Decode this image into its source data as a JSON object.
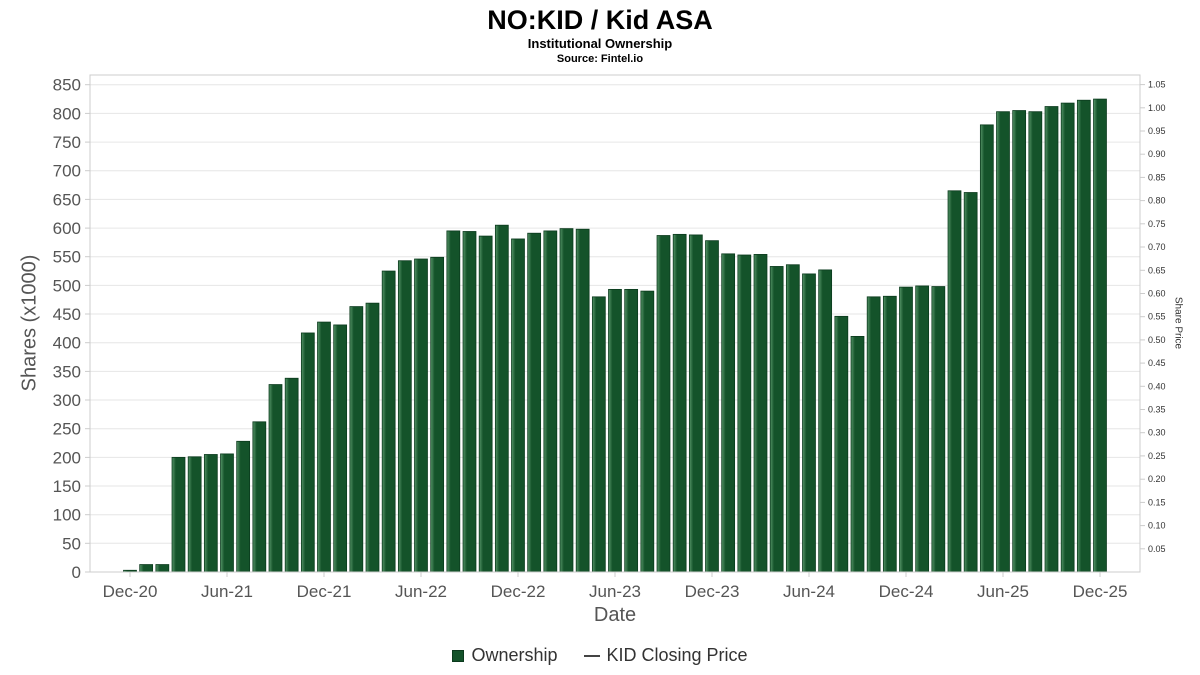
{
  "title": "NO:KID / Kid ASA",
  "subtitle": "Institutional Ownership",
  "source": "Source: Fintel.io",
  "xlabel": "Date",
  "ylabel_left": "Shares (x1000)",
  "ylabel_right": "Share Price",
  "legend": {
    "items": [
      {
        "label": "Ownership",
        "type": "bar",
        "color": "#14532a"
      },
      {
        "label": "KID Closing Price",
        "type": "line",
        "color": "#444444"
      }
    ]
  },
  "colors": {
    "bar_fill": "#14532a",
    "bar_edge_light": "#559467",
    "bar_stroke": "#0b3a1d",
    "grid": "#e6e6e6",
    "plot_border": "#cccccc",
    "tick_mark": "#cccccc",
    "tick_text": "#555555",
    "right_tick_text": "#333333"
  },
  "chart_data": {
    "type": "bar",
    "title": "NO:KID / Kid ASA",
    "subtitle": "Institutional Ownership",
    "source": "Source: Fintel.io",
    "xlabel": "Date",
    "ylabel_left": "Shares (x1000)",
    "ylabel_right": "Share Price",
    "grid": "horizontal",
    "legend_position": "bottom",
    "categories": [
      "Dec-20",
      "Jan-21",
      "Feb-21",
      "Mar-21",
      "Apr-21",
      "May-21",
      "Jun-21",
      "Jul-21",
      "Aug-21",
      "Sep-21",
      "Oct-21",
      "Nov-21",
      "Dec-21",
      "Jan-22",
      "Feb-22",
      "Mar-22",
      "Apr-22",
      "May-22",
      "Jun-22",
      "Jul-22",
      "Aug-22",
      "Sep-22",
      "Oct-22",
      "Nov-22",
      "Dec-22",
      "Jan-23",
      "Feb-23",
      "Mar-23",
      "Apr-23",
      "May-23",
      "Jun-23",
      "Jul-23",
      "Aug-23",
      "Sep-23",
      "Oct-23",
      "Nov-23",
      "Dec-23",
      "Jan-24",
      "Feb-24",
      "Mar-24",
      "Apr-24",
      "May-24",
      "Jun-24",
      "Jul-24",
      "Aug-24",
      "Sep-24",
      "Oct-24",
      "Nov-24",
      "Dec-24",
      "Jan-25",
      "Feb-25",
      "Mar-25",
      "Apr-25",
      "May-25",
      "Jun-25",
      "Jul-25",
      "Aug-25",
      "Sep-25",
      "Oct-25",
      "Nov-25",
      "Dec-25"
    ],
    "series": [
      {
        "name": "Ownership",
        "values": [
          3,
          13,
          13,
          200,
          201,
          205,
          206,
          228,
          262,
          327,
          338,
          417,
          436,
          431,
          463,
          469,
          525,
          543,
          546,
          549,
          595,
          594,
          586,
          605,
          581,
          591,
          595,
          599,
          598,
          480,
          493,
          493,
          490,
          587,
          589,
          588,
          578,
          555,
          553,
          554,
          533,
          536,
          520,
          527,
          446,
          411,
          480,
          481,
          497,
          499,
          498,
          665,
          662,
          780,
          803,
          805,
          803,
          812,
          818,
          823,
          825
        ]
      }
    ],
    "line_series": {
      "name": "KID Closing Price",
      "values": [],
      "note": "legend entry present; no line visible in plot"
    },
    "x_tick_labels": [
      "Dec-20",
      "Jun-21",
      "Dec-21",
      "Jun-22",
      "Dec-22",
      "Jun-23",
      "Dec-23",
      "Jun-24",
      "Dec-24",
      "Jun-25",
      "Dec-25"
    ],
    "left_axis": {
      "ticks": [
        0,
        50,
        100,
        150,
        200,
        250,
        300,
        350,
        400,
        450,
        500,
        550,
        600,
        650,
        700,
        750,
        800,
        850
      ],
      "min": 0,
      "max": 850,
      "max_plot": 867
    },
    "right_axis": {
      "ticks": [
        0.05,
        0.1,
        0.15,
        0.2,
        0.25,
        0.3,
        0.35,
        0.4,
        0.45,
        0.5,
        0.55,
        0.6,
        0.65,
        0.7,
        0.75,
        0.8,
        0.85,
        0.9,
        0.95,
        1.0,
        1.05
      ],
      "min": 0,
      "max": 1.05,
      "max_plot": 1.0706
    }
  }
}
